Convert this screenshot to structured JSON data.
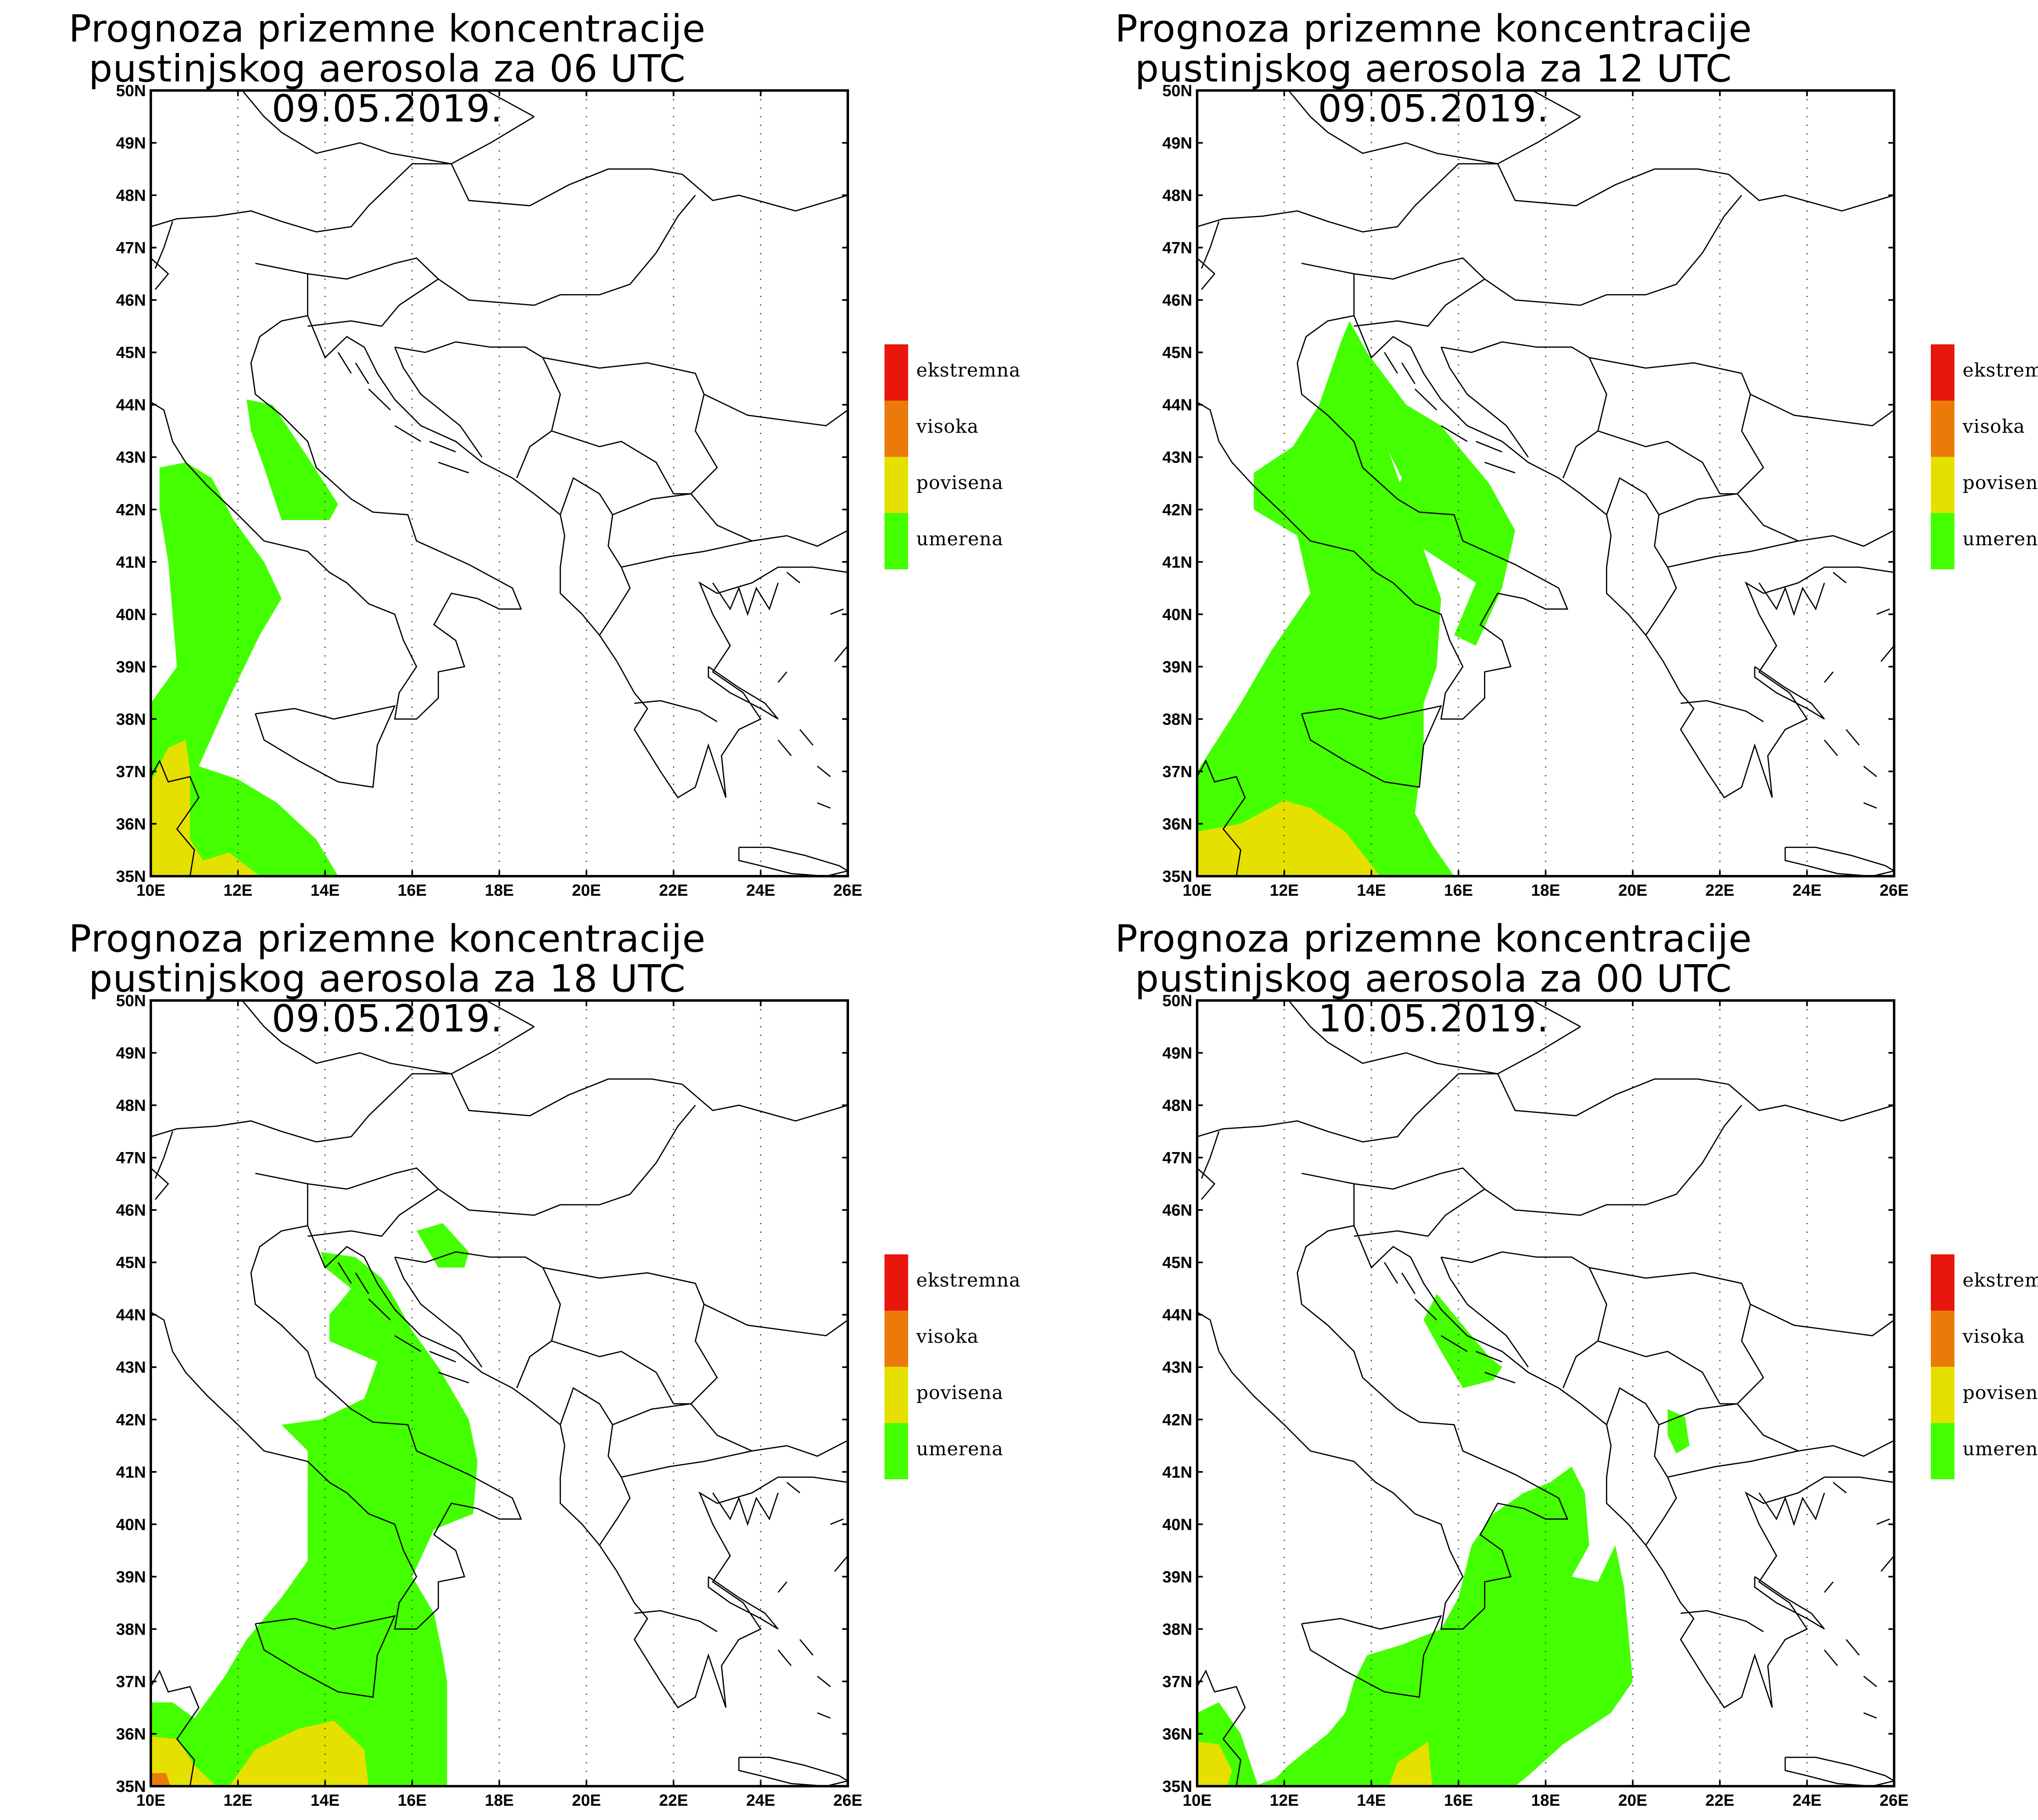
{
  "panels": [
    {
      "title_line1": "Prognoza prizemne koncentracije",
      "title_line2": "pustinjskog aerosola za 06 UTC 09.05.2019."
    },
    {
      "title_line1": "Prognoza prizemne koncentracije",
      "title_line2": "pustinjskog aerosola za 12 UTC 09.05.2019."
    },
    {
      "title_line1": "Prognoza prizemne koncentracije",
      "title_line2": "pustinjskog aerosola za 18 UTC 09.05.2019."
    },
    {
      "title_line1": "Prognoza prizemne koncentracije",
      "title_line2": "pustinjskog aerosola za 00 UTC 10.05.2019."
    }
  ],
  "legend": [
    {
      "label": "ekstremna",
      "color": "#e8160c"
    },
    {
      "label": "visoka",
      "color": "#eb7a0a"
    },
    {
      "label": "povisena",
      "color": "#e6e000"
    },
    {
      "label": "umerena",
      "color": "#44ff00"
    }
  ],
  "lat_labels": [
    "50N",
    "49N",
    "48N",
    "47N",
    "46N",
    "45N",
    "44N",
    "43N",
    "42N",
    "41N",
    "40N",
    "39N",
    "38N",
    "37N",
    "36N",
    "35N"
  ],
  "lon_labels": [
    "10E",
    "12E",
    "14E",
    "16E",
    "18E",
    "20E",
    "22E",
    "24E",
    "26E"
  ],
  "colors": {
    "moderate": "#44ff00",
    "elevated": "#e6e000",
    "high": "#eb7a0a",
    "extreme": "#e8160c",
    "border": "#000000"
  }
}
